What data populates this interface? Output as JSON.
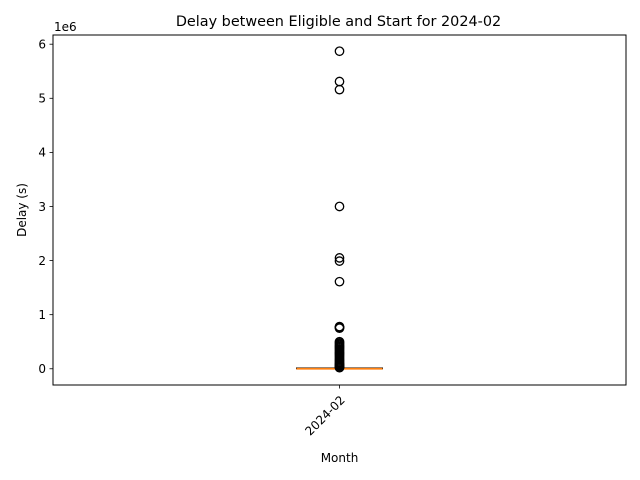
{
  "chart_data": {
    "type": "box",
    "title": "Delay between Eligible and Start for 2024-02",
    "xlabel": "Month",
    "ylabel": "Delay (s)",
    "y_scale_label": "1e6",
    "categories": [
      "2024-02"
    ],
    "x_tick_rotation_deg": 45,
    "ylim": [
      -300000,
      6170000
    ],
    "yticks": [
      0,
      1,
      2,
      3,
      4,
      5,
      6
    ],
    "ytick_multiplier": 1000000,
    "box": {
      "category": "2024-02",
      "q1": 0,
      "median": 0,
      "q3": 15000,
      "whisker_low": 0,
      "whisker_high": 15000
    },
    "outliers": [
      5870000,
      5310000,
      5160000,
      3000000,
      2050000,
      1990000,
      1610000,
      780000,
      770000,
      760000,
      750000,
      500000,
      480000,
      460000,
      440000,
      420000,
      400000,
      380000,
      360000,
      340000,
      320000,
      300000,
      280000,
      260000,
      240000,
      220000,
      200000,
      180000,
      160000,
      140000,
      120000,
      100000,
      90000,
      80000,
      70000,
      60000,
      50000,
      40000,
      30000,
      25000,
      20000
    ],
    "colors": {
      "median": "#ff7f0e",
      "box": "#000000",
      "flier": "#000000"
    },
    "grid": false,
    "legend": "none"
  }
}
